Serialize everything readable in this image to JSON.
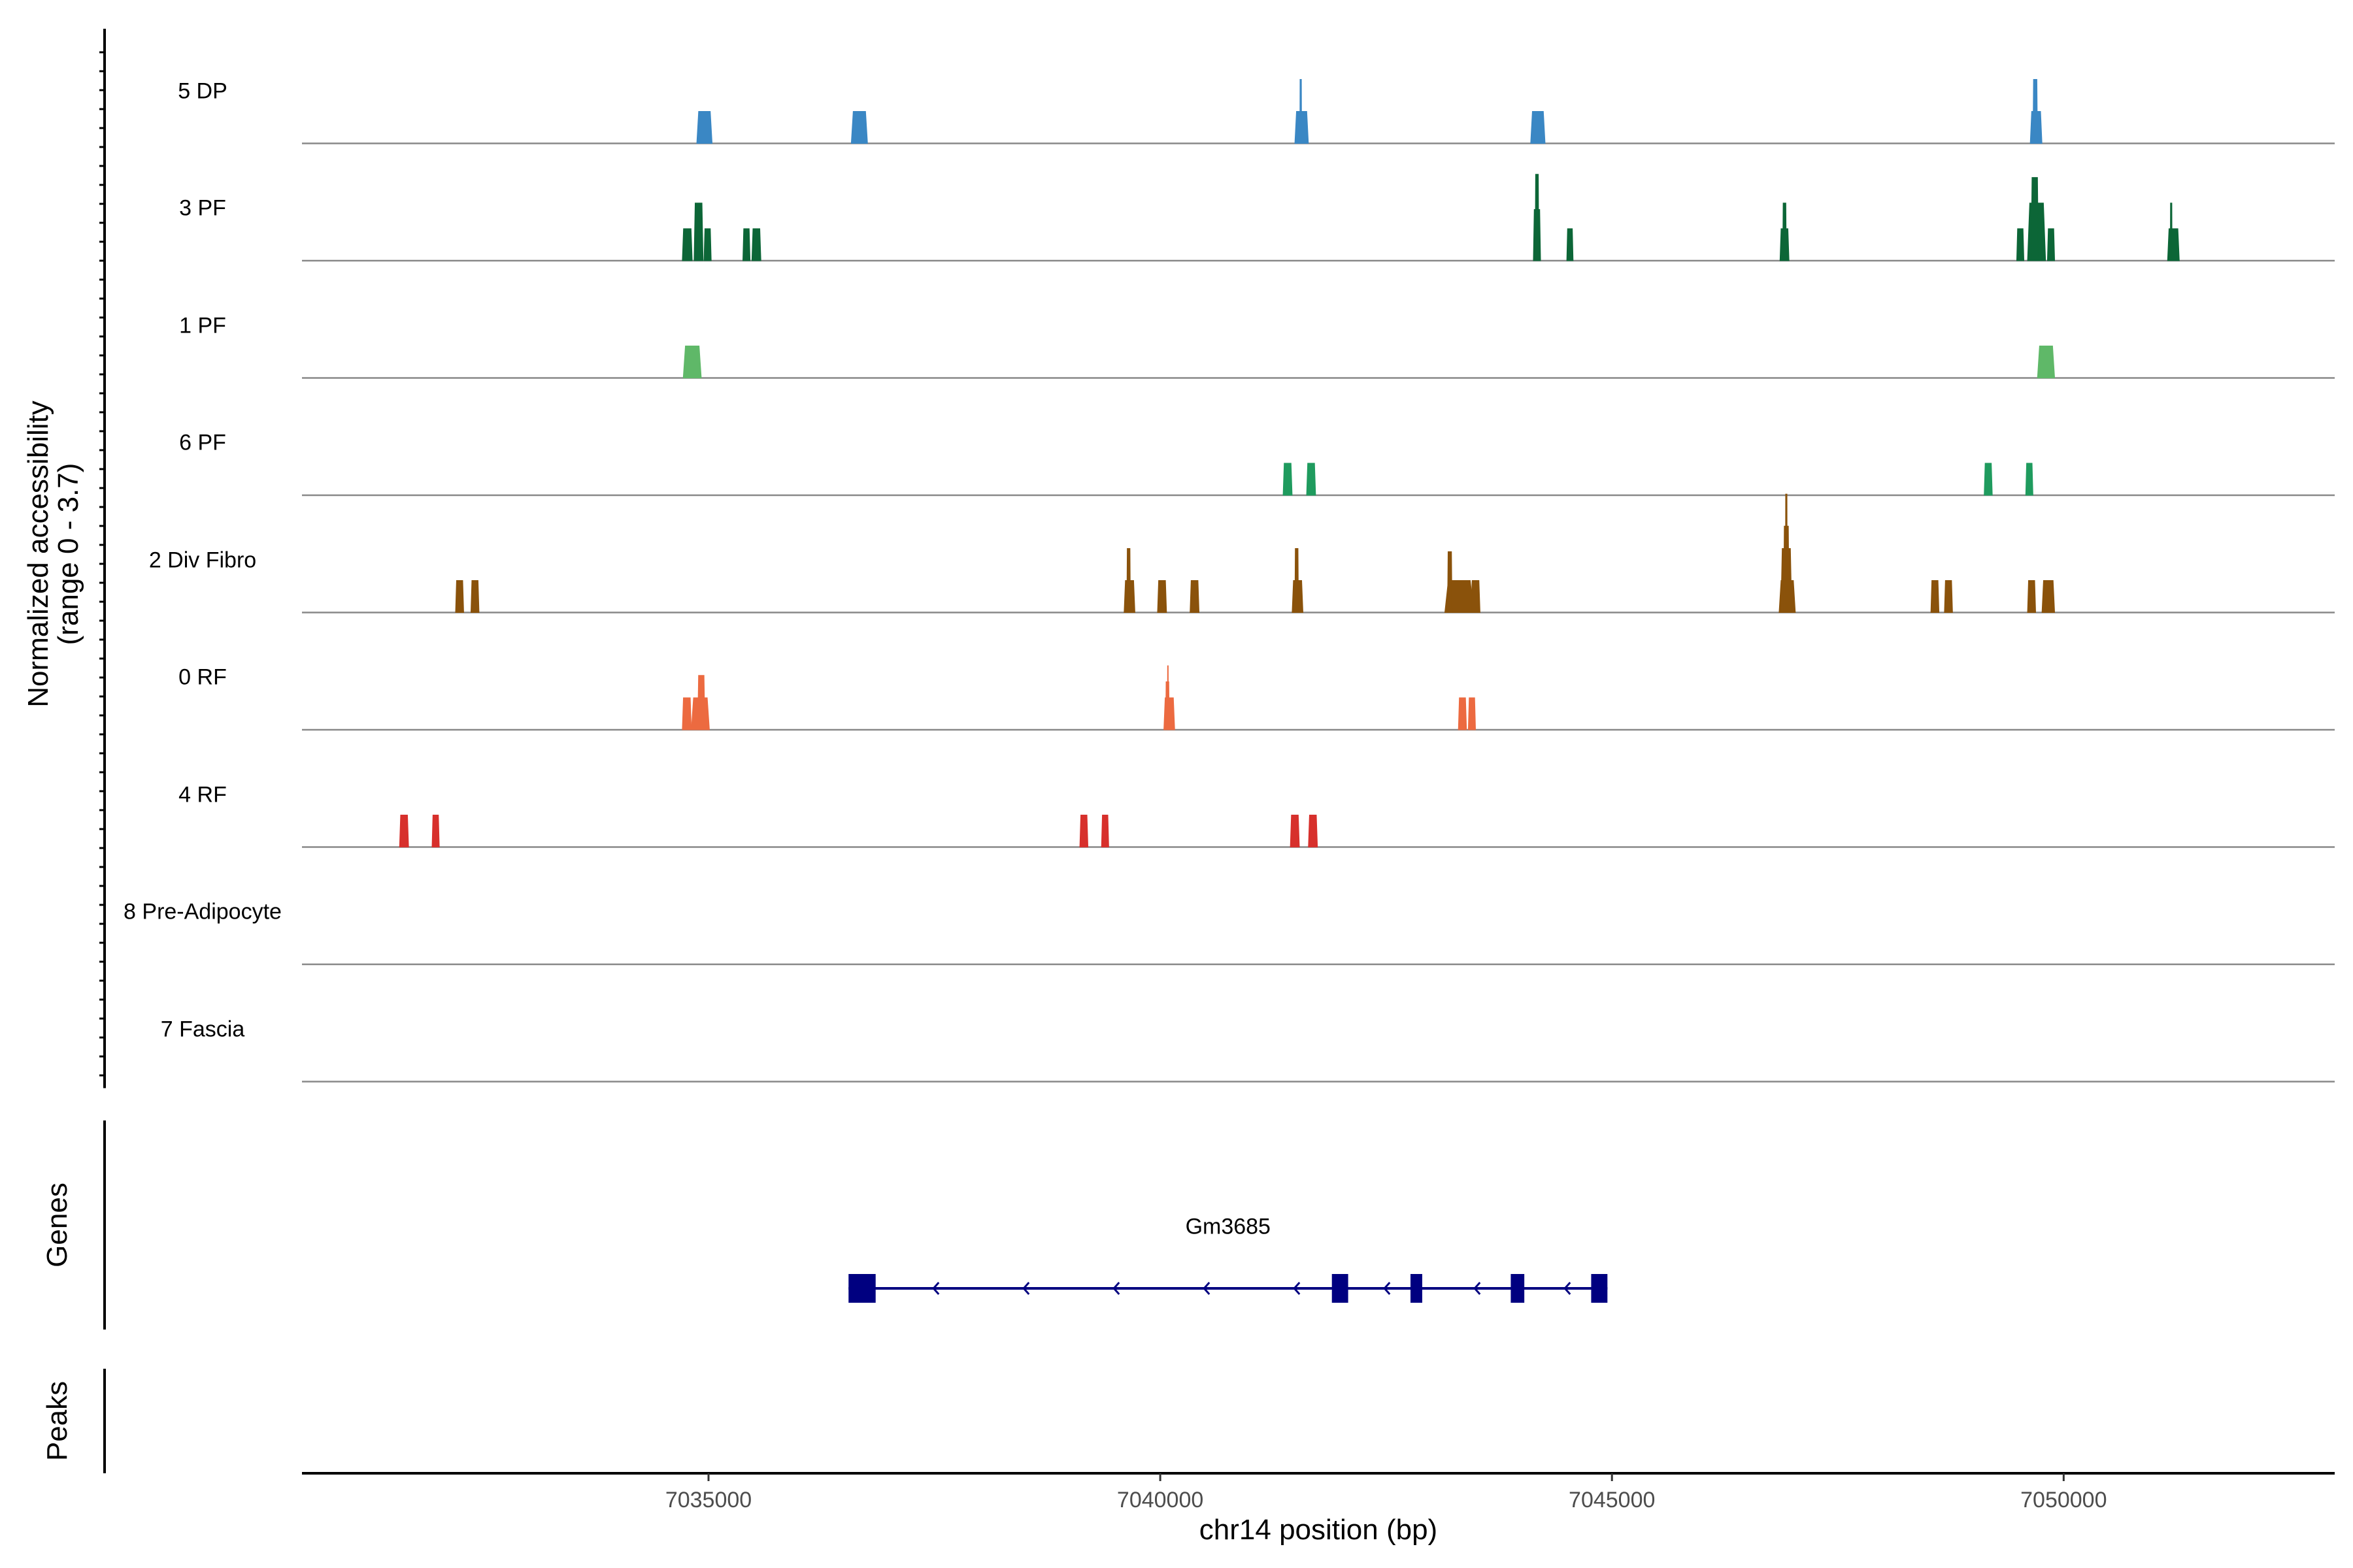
{
  "chart_data": {
    "type": "area",
    "title": "",
    "xlabel": "chr14 position (bp)",
    "ylabel": "Normalized accessibility",
    "ylabel_sub": "(range 0 - 3.7)",
    "xlim": [
      7030500,
      7053000
    ],
    "ylim": [
      0,
      3.7
    ],
    "x_ticks": [
      7035000,
      7040000,
      7045000,
      7050000
    ],
    "x_tick_labels": [
      "7035000",
      "7040000",
      "7045000",
      "7050000"
    ],
    "tracks": [
      {
        "name": "5 DP",
        "color": "#3a87c4",
        "peaks": [
          [
            7034870,
            7035040,
            1.0
          ],
          [
            7036580,
            7036760,
            1.0
          ],
          [
            7041490,
            7041640,
            1.0
          ],
          [
            7041545,
            7041565,
            2.0
          ],
          [
            7044100,
            7044260,
            1.0
          ],
          [
            7049630,
            7049760,
            1.0
          ],
          [
            7049660,
            7049710,
            2.0
          ]
        ]
      },
      {
        "name": "3 PF",
        "color": "#0c6637",
        "peaks": [
          [
            7034710,
            7034820,
            1.0
          ],
          [
            7034840,
            7034940,
            1.8
          ],
          [
            7034950,
            7035030,
            1.0
          ],
          [
            7035380,
            7035460,
            1.0
          ],
          [
            7035480,
            7035580,
            1.0
          ],
          [
            7044130,
            7044210,
            1.6
          ],
          [
            7044150,
            7044190,
            2.7
          ],
          [
            7044500,
            7044570,
            1.0
          ],
          [
            7046860,
            7046960,
            1.0
          ],
          [
            7046890,
            7046930,
            1.8
          ],
          [
            7049480,
            7049560,
            1.0
          ],
          [
            7049600,
            7049800,
            1.8
          ],
          [
            7049640,
            7049720,
            2.6
          ],
          [
            7049820,
            7049900,
            1.0
          ],
          [
            7051150,
            7051280,
            1.0
          ],
          [
            7051180,
            7051200,
            1.8
          ]
        ]
      },
      {
        "name": "1 PF",
        "color": "#5fb868",
        "peaks": [
          [
            7034720,
            7034920,
            1.0
          ],
          [
            7049710,
            7049900,
            1.0
          ]
        ]
      },
      {
        "name": "6 PF",
        "color": "#1f9b5e",
        "peaks": [
          [
            7041360,
            7041460,
            1.0
          ],
          [
            7041620,
            7041720,
            1.0
          ],
          [
            7049120,
            7049210,
            1.0
          ],
          [
            7049580,
            7049660,
            1.0
          ]
        ]
      },
      {
        "name": "2 Div Fibro",
        "color": "#8a520b",
        "peaks": [
          [
            7032200,
            7032290,
            1.0
          ],
          [
            7032370,
            7032460,
            1.0
          ],
          [
            7039600,
            7039720,
            1.0
          ],
          [
            7039630,
            7039670,
            2.0
          ],
          [
            7039970,
            7040070,
            1.0
          ],
          [
            7040330,
            7040430,
            1.0
          ],
          [
            7041460,
            7041580,
            1.0
          ],
          [
            7041490,
            7041530,
            2.0
          ],
          [
            7043150,
            7043470,
            1.0
          ],
          [
            7043180,
            7043230,
            1.9
          ],
          [
            7043440,
            7043540,
            1.0
          ],
          [
            7046850,
            7047030,
            1.0
          ],
          [
            7046870,
            7046990,
            2.0
          ],
          [
            7046900,
            7046960,
            2.7
          ],
          [
            7046920,
            7046940,
            3.7
          ],
          [
            7048530,
            7048620,
            1.0
          ],
          [
            7048680,
            7048770,
            1.0
          ],
          [
            7049600,
            7049690,
            1.0
          ],
          [
            7049760,
            7049900,
            1.0
          ]
        ]
      },
      {
        "name": "0 RF",
        "color": "#ec6a40",
        "peaks": [
          [
            7034710,
            7034810,
            1.0
          ],
          [
            7034810,
            7035010,
            1.0
          ],
          [
            7034880,
            7034960,
            1.7
          ],
          [
            7040040,
            7040160,
            1.0
          ],
          [
            7040060,
            7040100,
            1.5
          ],
          [
            7040080,
            7040090,
            2.0
          ],
          [
            7043300,
            7043390,
            1.0
          ],
          [
            7043410,
            7043490,
            1.0
          ]
        ]
      },
      {
        "name": "4 RF",
        "color": "#d7302c",
        "peaks": [
          [
            7031580,
            7031680,
            1.0
          ],
          [
            7031940,
            7032020,
            1.0
          ],
          [
            7039110,
            7039200,
            1.0
          ],
          [
            7039350,
            7039430,
            1.0
          ],
          [
            7041440,
            7041540,
            1.0
          ],
          [
            7041640,
            7041740,
            1.0
          ]
        ]
      },
      {
        "name": "8 Pre-Adipocyte",
        "color": "#9f7fc2",
        "peaks": []
      },
      {
        "name": "7 Fascia",
        "color": "#e78ac3",
        "peaks": []
      }
    ],
    "genes": [
      {
        "name": "Gm3685",
        "start": 7036550,
        "end": 7044950,
        "strand": "-",
        "color": "#000080",
        "exons": [
          [
            7036550,
            7036850
          ],
          [
            7041900,
            7042080
          ],
          [
            7042770,
            7042900
          ],
          [
            7043880,
            7044030
          ],
          [
            7044770,
            7044950
          ]
        ]
      }
    ],
    "peaks_track": []
  },
  "panels": {
    "genes_label": "Genes",
    "peaks_label": "Peaks"
  }
}
